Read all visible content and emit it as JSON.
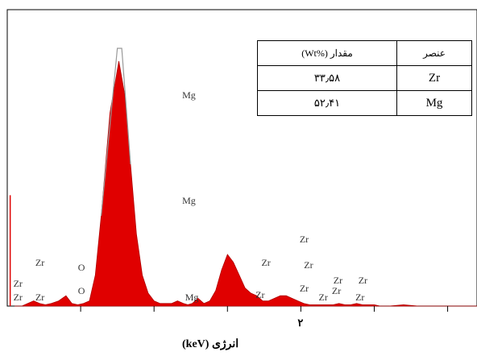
{
  "chart_data": {
    "type": "area",
    "title": "",
    "xlabel": "انرژی (keV)",
    "ylabel": "",
    "x_tick_labels": [
      {
        "value": 2,
        "label": "۲"
      }
    ],
    "xlim": [
      0,
      3.2
    ],
    "ylim": [
      0,
      100
    ],
    "spectrum": {
      "x": [
        0.05,
        0.1,
        0.14,
        0.18,
        0.22,
        0.26,
        0.3,
        0.35,
        0.4,
        0.44,
        0.48,
        0.52,
        0.56,
        0.6,
        0.64,
        0.7,
        0.76,
        0.8,
        0.84,
        0.88,
        0.92,
        0.96,
        1.0,
        1.04,
        1.08,
        1.12,
        1.16,
        1.2,
        1.23,
        1.26,
        1.3,
        1.34,
        1.38,
        1.42,
        1.46,
        1.5,
        1.54,
        1.58,
        1.62,
        1.66,
        1.7,
        1.74,
        1.78,
        1.82,
        1.86,
        1.9,
        1.94,
        1.98,
        2.02,
        2.06,
        2.1,
        2.14,
        2.18,
        2.22,
        2.26,
        2.3,
        2.34,
        2.38,
        2.42,
        2.46,
        2.5,
        2.54,
        2.6,
        2.7,
        2.8,
        2.9,
        3.0,
        3.1,
        3.2
      ],
      "y": [
        0,
        0,
        1,
        2,
        1,
        0.5,
        1,
        2,
        4,
        1,
        0.5,
        1,
        2,
        12,
        35,
        75,
        95,
        82,
        55,
        28,
        12,
        5,
        2,
        1,
        1,
        1,
        2,
        1,
        0.5,
        1,
        3,
        1,
        2,
        6,
        14,
        20,
        17,
        12,
        7,
        5,
        4,
        2,
        2,
        3,
        4,
        4,
        3,
        2,
        1,
        0.5,
        0.5,
        0.5,
        0.5,
        0.5,
        1,
        0.5,
        0.5,
        1,
        0.5,
        0.5,
        0.5,
        0,
        0,
        0.5,
        0,
        0,
        0,
        0,
        0
      ],
      "outline_y_at_mg_peak": 100,
      "fill_color": "#e00000",
      "outline_color": "#999999"
    },
    "vertical_line": {
      "x": 0.02,
      "y": 43,
      "color": "#e00000"
    },
    "annotations": [
      {
        "text": "Mg",
        "x": 1.23,
        "y": 80
      },
      {
        "text": "Mg",
        "x": 1.23,
        "y": 39
      },
      {
        "text": "Mg",
        "x": 1.25,
        "y": 1.5
      },
      {
        "text": "Zr",
        "x": 0.08,
        "y": 7
      },
      {
        "text": "Zr",
        "x": 0.08,
        "y": 1.5
      },
      {
        "text": "Zr",
        "x": 0.23,
        "y": 1.5
      },
      {
        "text": "Zr",
        "x": 0.23,
        "y": 15
      },
      {
        "text": "O",
        "x": 0.52,
        "y": 13
      },
      {
        "text": "O",
        "x": 0.52,
        "y": 4
      },
      {
        "text": "Zr",
        "x": 1.77,
        "y": 15
      },
      {
        "text": "Zr",
        "x": 1.73,
        "y": 2.5
      },
      {
        "text": "Zr",
        "x": 2.03,
        "y": 24
      },
      {
        "text": "Zr",
        "x": 2.06,
        "y": 14
      },
      {
        "text": "Zr",
        "x": 2.03,
        "y": 5
      },
      {
        "text": "Zr",
        "x": 2.16,
        "y": 1.5
      },
      {
        "text": "Zr",
        "x": 2.26,
        "y": 8
      },
      {
        "text": "Zr",
        "x": 2.25,
        "y": 4
      },
      {
        "text": "Zr",
        "x": 2.43,
        "y": 8
      },
      {
        "text": "Zr",
        "x": 2.41,
        "y": 1.5
      }
    ]
  },
  "composition_table": {
    "header": {
      "amount": "مقدار (%Wt)",
      "element": "عنصر"
    },
    "rows": [
      {
        "amount": "۳۳٫۵۸",
        "element": "Zr"
      },
      {
        "amount": "۵۲٫۴۱",
        "element": "Mg"
      }
    ]
  }
}
